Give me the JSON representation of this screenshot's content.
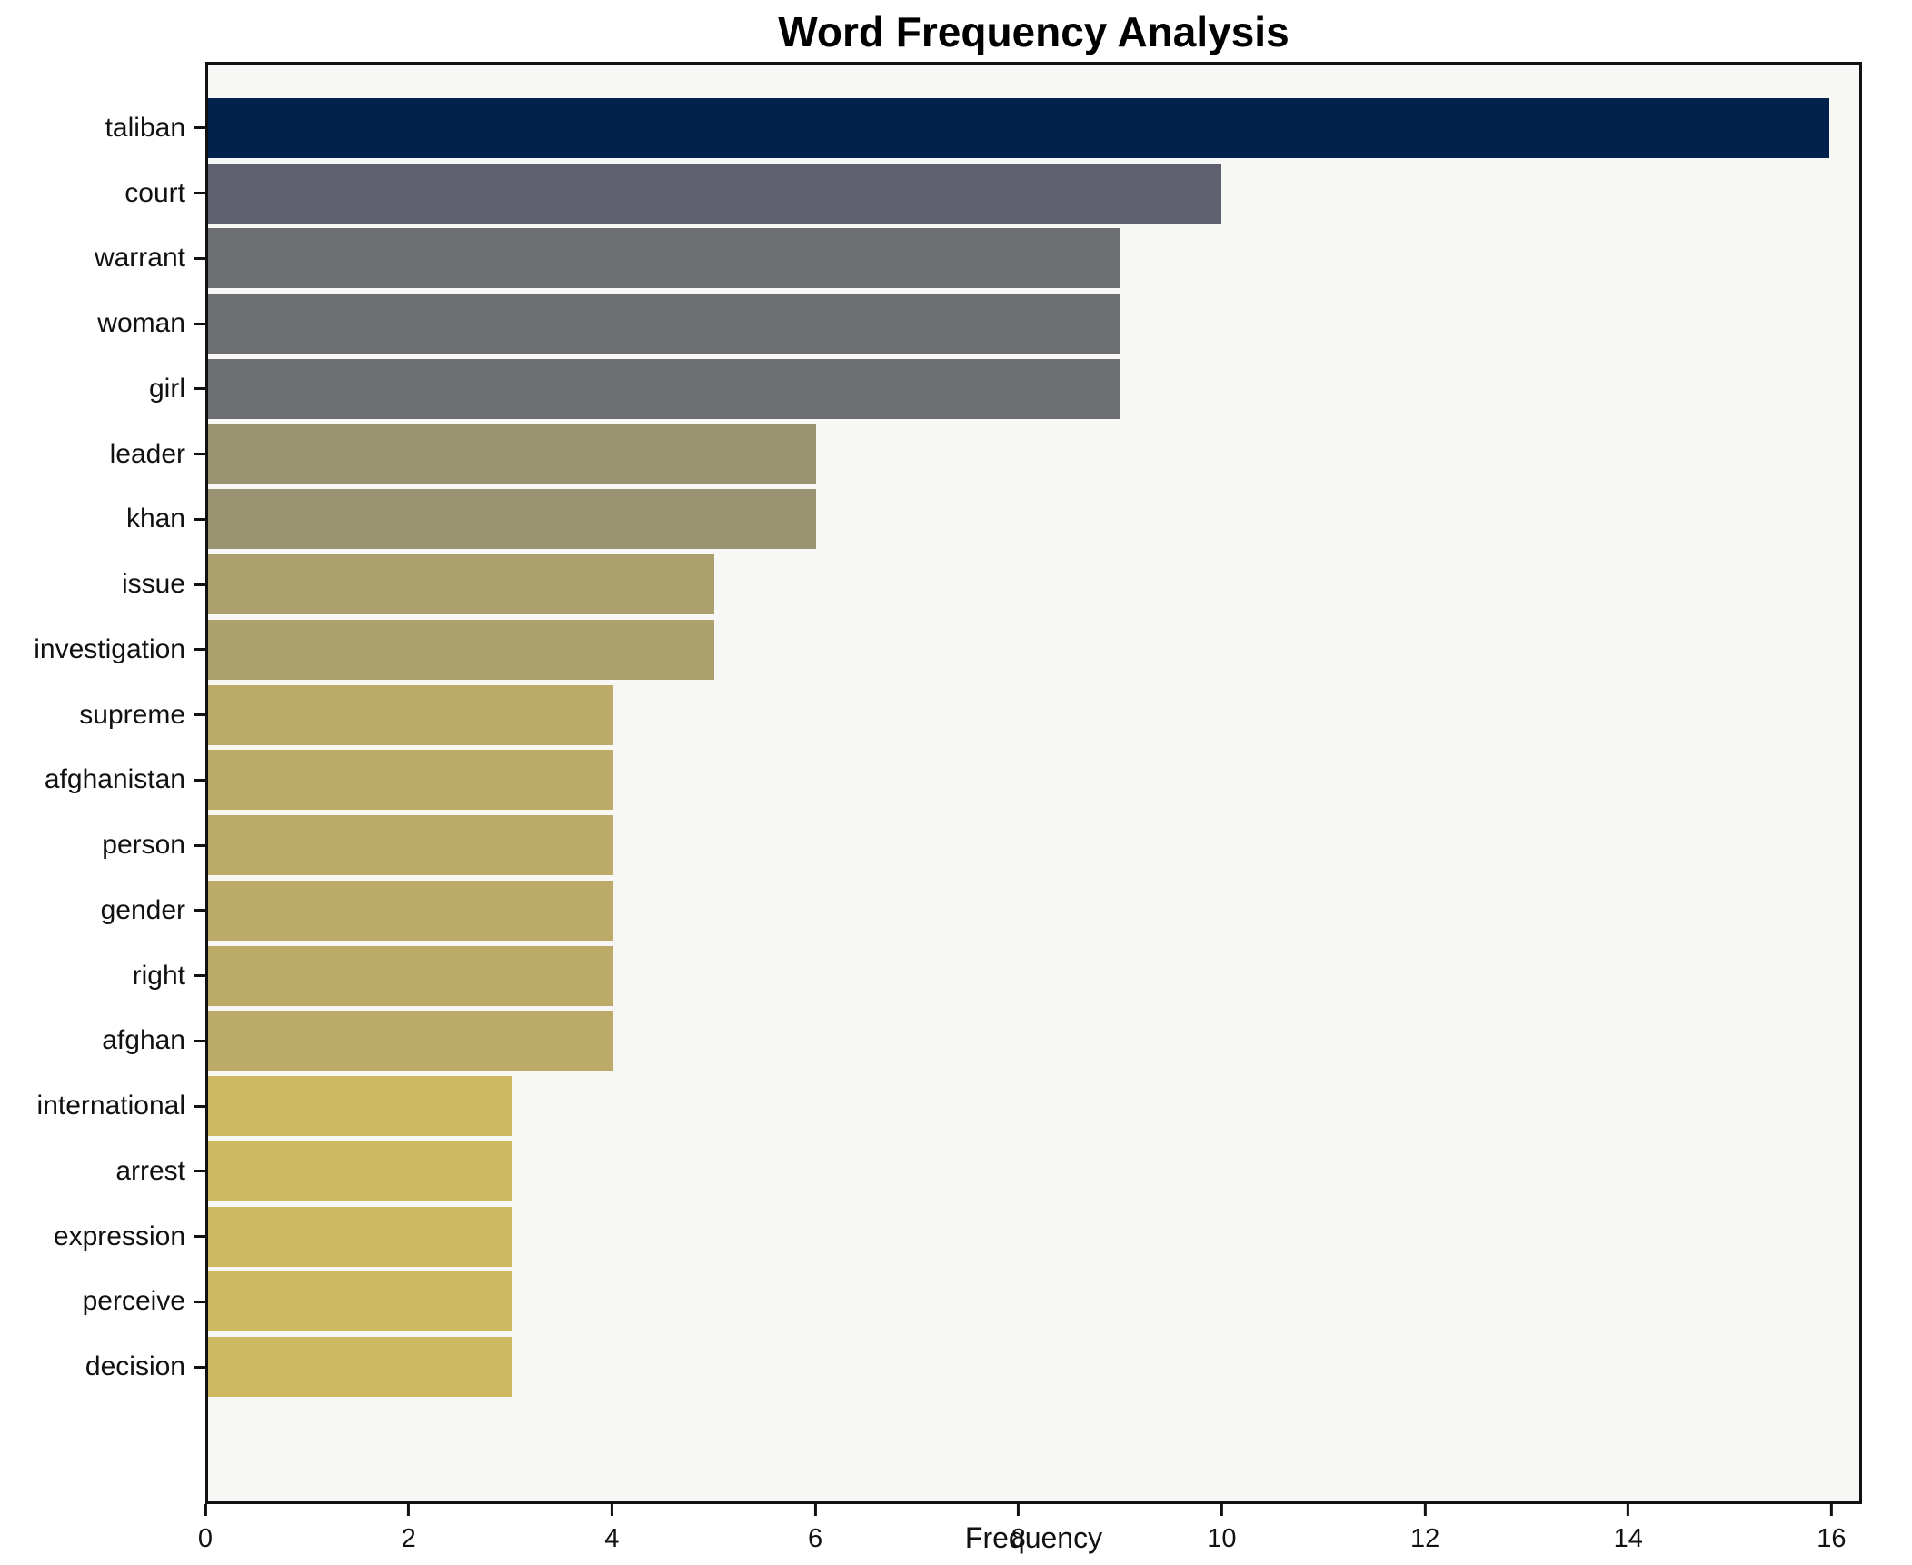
{
  "title": "Word Frequency Analysis",
  "chart_data": {
    "type": "bar",
    "orientation": "horizontal",
    "title": "Word Frequency Analysis",
    "xlabel": "Frequency",
    "ylabel": "",
    "categories": [
      "taliban",
      "court",
      "warrant",
      "woman",
      "girl",
      "leader",
      "khan",
      "issue",
      "investigation",
      "supreme",
      "afghanistan",
      "person",
      "gender",
      "right",
      "afghan",
      "international",
      "arrest",
      "expression",
      "perceive",
      "decision"
    ],
    "values": [
      16,
      10,
      9,
      9,
      9,
      6,
      6,
      5,
      5,
      4,
      4,
      4,
      4,
      4,
      4,
      3,
      3,
      3,
      3,
      3
    ],
    "bar_colors": [
      "#02214d",
      "#5f626e",
      "#6d6e71",
      "#6d6e71",
      "#6d6e71",
      "#9a9372",
      "#9a9372",
      "#aca06d",
      "#aca06d",
      "#bcab68",
      "#bcab68",
      "#bcab68",
      "#bcab68",
      "#bcab68",
      "#bcab68",
      "#cdb962",
      "#cdb962",
      "#cdb962",
      "#cdb962",
      "#cdb962"
    ],
    "xlim": [
      0,
      16.3
    ],
    "xticks": [
      0,
      2,
      4,
      6,
      8,
      10,
      12,
      14,
      16
    ],
    "grid": false,
    "legend": null,
    "plot_background": "#f7f7f6",
    "figure_background": "#ffffff",
    "spine_color": "#111111"
  }
}
